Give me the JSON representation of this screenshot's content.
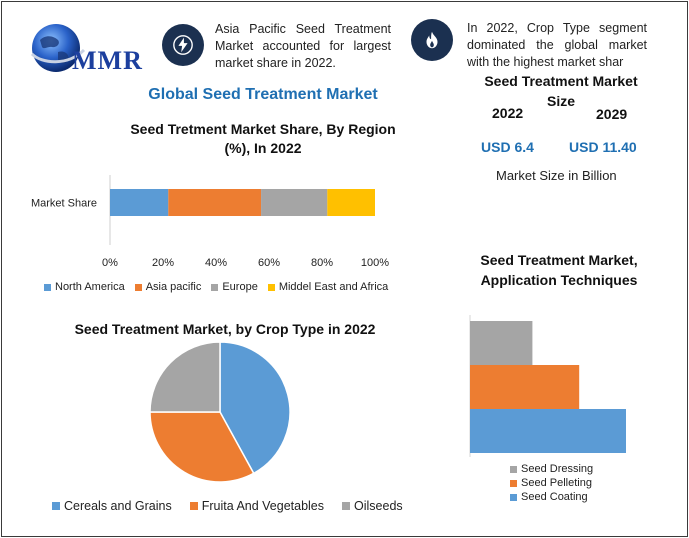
{
  "logo": {
    "text": "MMR"
  },
  "info": [
    {
      "icon": "lightning-icon",
      "text": "Asia Pacific Seed Treatment Market accounted for largest market share in 2022."
    },
    {
      "icon": "flame-icon",
      "text": "In 2022, Crop Type segment dominated the global market with the highest market shar"
    }
  ],
  "main_title": "Global Seed Treatment Market",
  "market_size": {
    "title_line1": "Seed Treatment Market",
    "title_line2": "Size",
    "year_start": "2022",
    "year_end": "2029",
    "value_start": "USD 6.4",
    "value_end": "USD 11.40",
    "note": "Market Size in Billion"
  },
  "colors": {
    "blue": "#5b9bd5",
    "orange": "#ed7d31",
    "gray": "#a5a5a5",
    "yellow": "#ffc000",
    "accent": "#1f6fb2",
    "icon_bg": "#1b3050"
  },
  "chart_data": [
    {
      "type": "bar",
      "orientation": "horizontal-stacked-100",
      "title": "Seed Tretment Market Share, By Region (%), In 2022",
      "categories": [
        "Market Share"
      ],
      "series": [
        {
          "name": "North America",
          "values": [
            22
          ]
        },
        {
          "name": "Asia pacific",
          "values": [
            35
          ]
        },
        {
          "name": "Europe",
          "values": [
            25
          ]
        },
        {
          "name": "Middel East and Africa",
          "values": [
            18
          ]
        }
      ],
      "xlim": [
        0,
        100
      ],
      "xticks": [
        "0%",
        "20%",
        "40%",
        "60%",
        "80%",
        "100%"
      ],
      "legend": "bottom"
    },
    {
      "type": "pie",
      "title": "Seed Treatment Market, by Crop Type in 2022",
      "series": [
        {
          "name": "Cereals and Grains",
          "values": [
            42
          ]
        },
        {
          "name": "Fruita And Vegetables",
          "values": [
            33
          ]
        },
        {
          "name": "Oilseeds",
          "values": [
            25
          ]
        }
      ],
      "legend": "bottom"
    },
    {
      "type": "bar",
      "orientation": "horizontal",
      "title": "Seed Treatment Market, Application Techniques",
      "series": [
        {
          "name": "Seed Dressing",
          "values": [
            40
          ]
        },
        {
          "name": "Seed Pelleting",
          "values": [
            70
          ]
        },
        {
          "name": "Seed Coating",
          "values": [
            100
          ]
        }
      ],
      "legend": "bottom"
    }
  ]
}
